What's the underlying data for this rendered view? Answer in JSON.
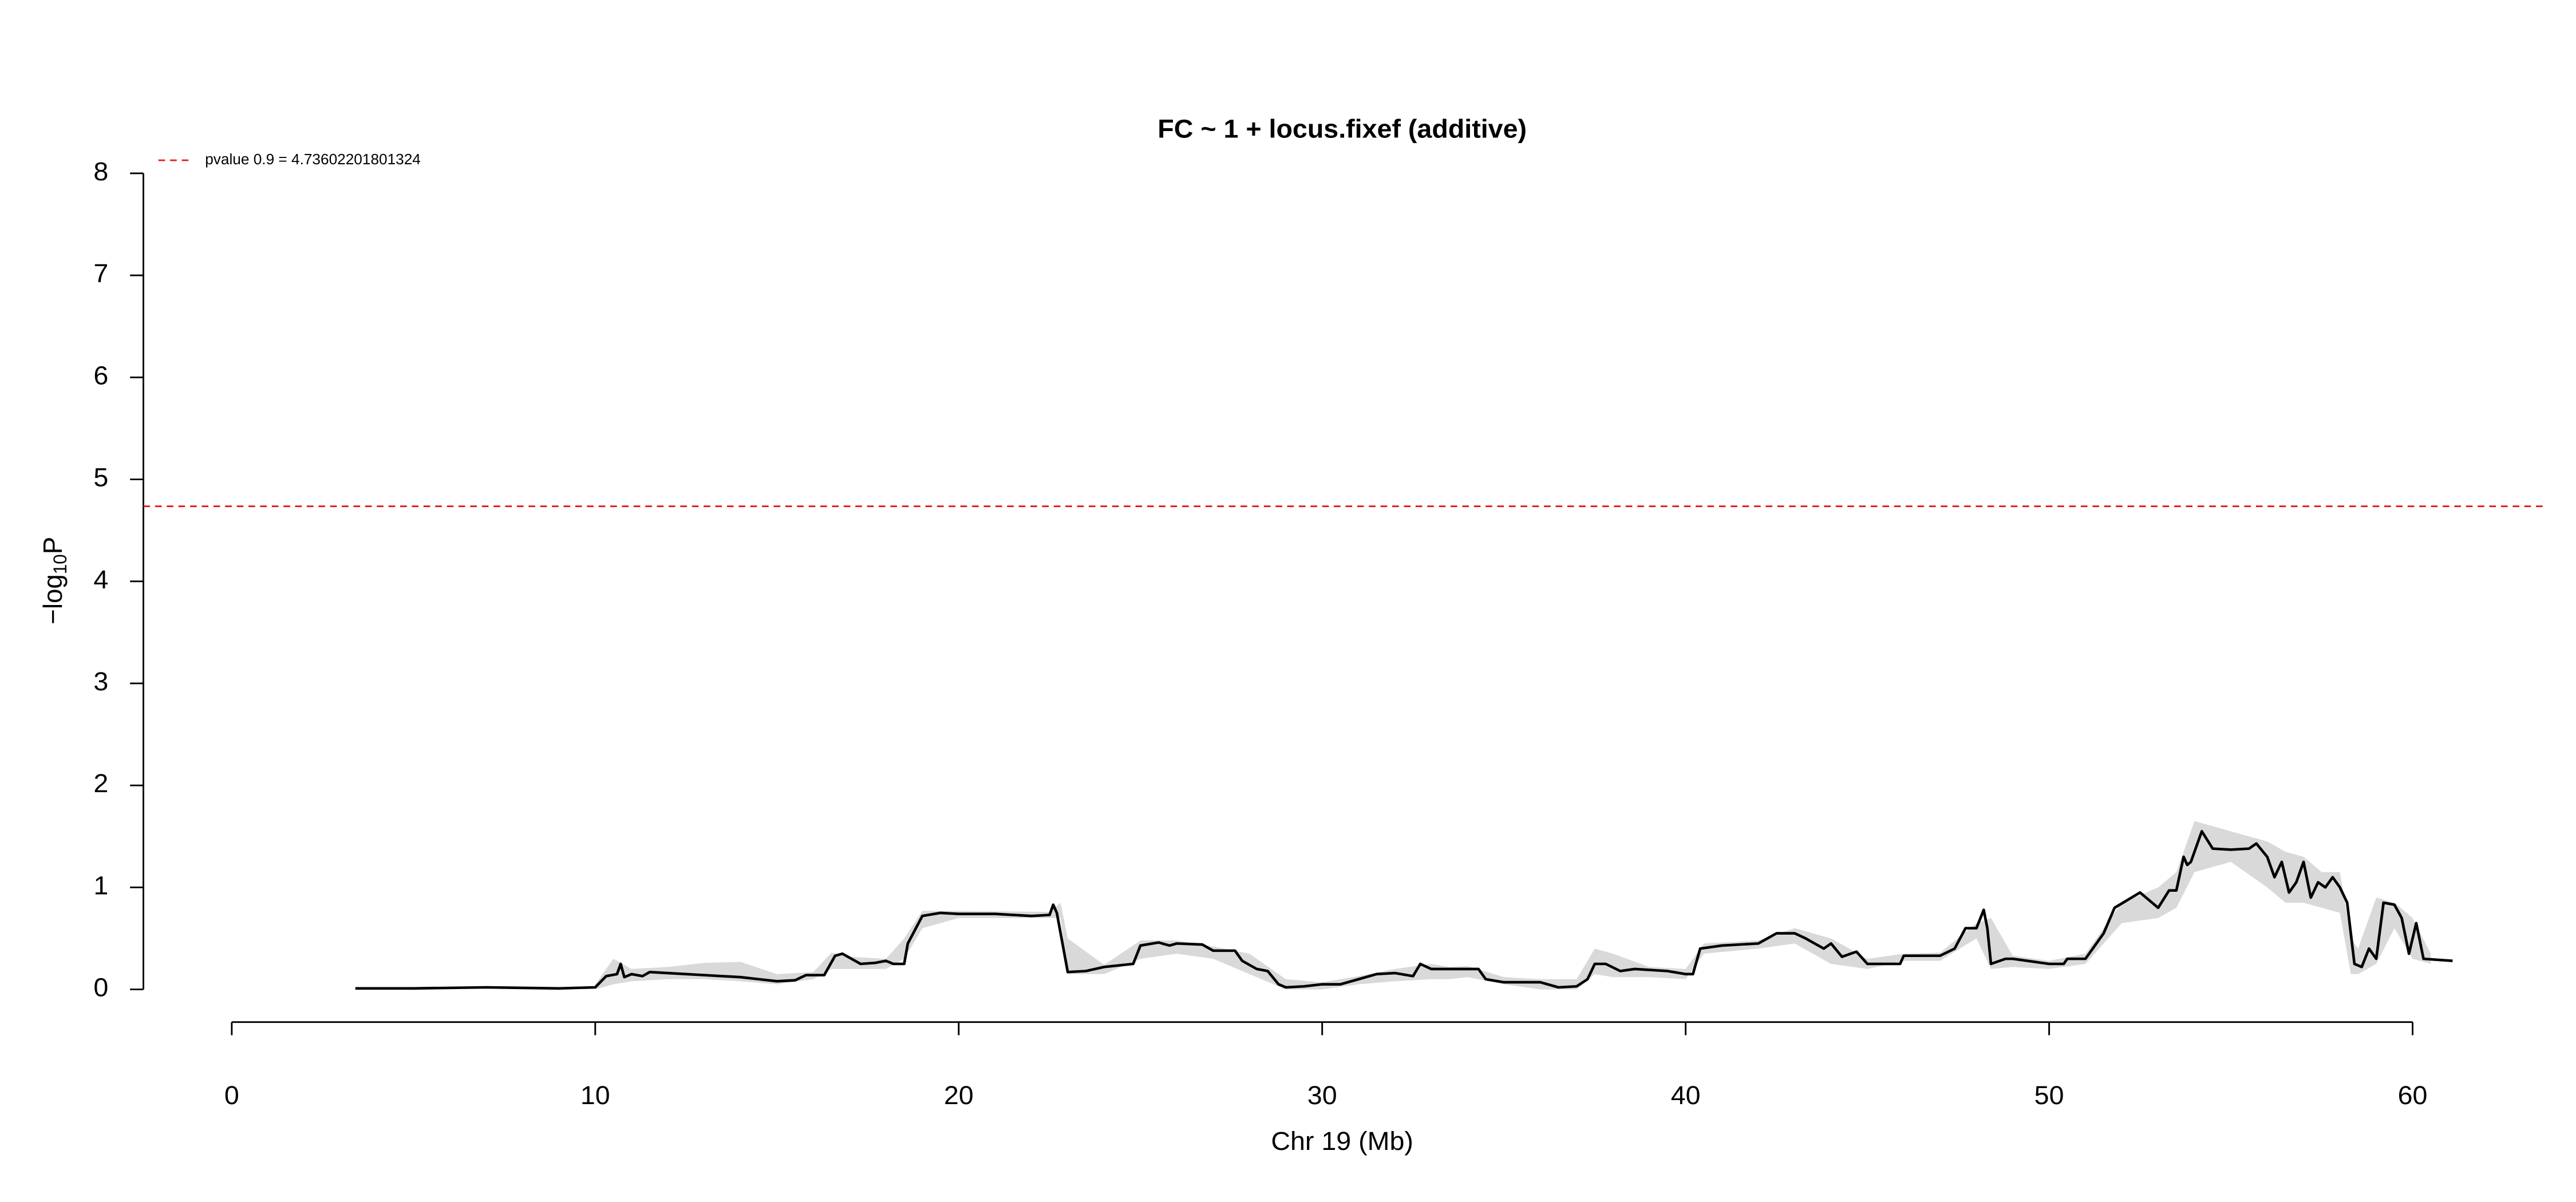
{
  "chart_data": {
    "type": "line",
    "title": "FC ~ 1 + locus.fixef (additive)",
    "xlabel": "Chr 19 (Mb)",
    "ylabel": {
      "text": "−log",
      "subscript": "10",
      "after": "P"
    },
    "xlim": [
      0,
      60
    ],
    "xticks": [
      0,
      10,
      20,
      30,
      40,
      50,
      60
    ],
    "ylim": [
      0,
      8
    ],
    "yticks": [
      0,
      1,
      2,
      3,
      4,
      5,
      6,
      7,
      8
    ],
    "threshold": {
      "value": 4.73602201801324,
      "label": "pvalue 0.9 = 4.73602201801324",
      "color": "#e41a1c"
    },
    "band": {
      "color": "#d9d9d9",
      "x": [
        10,
        10.5,
        11,
        12,
        13,
        14,
        15,
        16,
        16.5,
        17,
        18,
        18.5,
        19,
        20,
        22.5,
        22.8,
        23,
        24,
        25,
        26,
        27,
        28,
        29,
        30,
        31,
        32,
        33,
        33.5,
        34,
        35,
        36,
        37,
        37.5,
        38,
        39,
        40,
        40.5,
        42,
        43,
        44,
        45,
        46,
        47,
        48,
        48.4,
        49,
        50,
        51,
        52,
        53,
        53.5,
        54,
        55,
        56,
        56.5,
        57,
        57.5,
        58,
        58.3,
        58.5,
        59,
        59.5,
        60,
        60.5
      ],
      "upper": [
        0.05,
        0.3,
        0.2,
        0.22,
        0.26,
        0.27,
        0.15,
        0.17,
        0.36,
        0.32,
        0.3,
        0.5,
        0.77,
        0.77,
        0.76,
        0.85,
        0.5,
        0.24,
        0.48,
        0.48,
        0.42,
        0.35,
        0.1,
        0.07,
        0.13,
        0.2,
        0.25,
        0.22,
        0.23,
        0.12,
        0.1,
        0.1,
        0.4,
        0.35,
        0.22,
        0.2,
        0.45,
        0.48,
        0.6,
        0.5,
        0.3,
        0.35,
        0.36,
        0.65,
        0.7,
        0.33,
        0.28,
        0.35,
        0.85,
        1.0,
        1.15,
        1.65,
        1.55,
        1.45,
        1.35,
        1.3,
        1.15,
        1.15,
        0.5,
        0.4,
        0.9,
        0.85,
        0.7,
        0.35
      ],
      "lower": [
        0,
        0.05,
        0.08,
        0.1,
        0.1,
        0.08,
        0.05,
        0.1,
        0.2,
        0.2,
        0.2,
        0.3,
        0.6,
        0.7,
        0.7,
        0.7,
        0.15,
        0.15,
        0.3,
        0.35,
        0.3,
        0.15,
        0,
        0,
        0.05,
        0.08,
        0.1,
        0.1,
        0.12,
        0.05,
        0,
        0,
        0.15,
        0.12,
        0.12,
        0.1,
        0.35,
        0.4,
        0.45,
        0.25,
        0.2,
        0.28,
        0.28,
        0.5,
        0.2,
        0.22,
        0.2,
        0.25,
        0.65,
        0.7,
        0.8,
        1.15,
        1.25,
        1.0,
        0.85,
        0.85,
        0.8,
        0.75,
        0.15,
        0.15,
        0.25,
        0.6,
        0.3,
        0.25
      ]
    },
    "series": [
      {
        "color": "#000000",
        "x": [
          3.4,
          5,
          7,
          9,
          10,
          10.3,
          10.6,
          10.7,
          10.8,
          11,
          11.3,
          11.5,
          12,
          13,
          14,
          14.5,
          15,
          15.5,
          15.8,
          16.3,
          16.6,
          16.8,
          17.3,
          17.7,
          18,
          18.2,
          18.5,
          18.6,
          19,
          19.5,
          20,
          21,
          22,
          22.5,
          22.6,
          22.7,
          23,
          23.5,
          24,
          24.8,
          25,
          25.5,
          25.8,
          26,
          26.7,
          27,
          27.6,
          27.8,
          28.2,
          28.5,
          28.8,
          29,
          29.5,
          30,
          30.5,
          31,
          31.5,
          32,
          32.5,
          32.7,
          33,
          34,
          34.3,
          34.5,
          35,
          36,
          36.5,
          37,
          37.3,
          37.5,
          37.8,
          38.2,
          38.6,
          39.5,
          40,
          40.2,
          40.4,
          41,
          42,
          42.5,
          43,
          43.3,
          43.8,
          44,
          44.3,
          44.7,
          45,
          45.9,
          46,
          47,
          47.4,
          47.7,
          48,
          48.2,
          48.3,
          48.4,
          48.8,
          49,
          50,
          50.4,
          50.5,
          51,
          51.5,
          51.8,
          52.5,
          53,
          53.3,
          53.5,
          53.7,
          53.8,
          53.9,
          54.2,
          54.5,
          55,
          55.5,
          55.7,
          56,
          56.2,
          56.4,
          56.6,
          56.8,
          57,
          57.2,
          57.4,
          57.6,
          57.8,
          58,
          58.2,
          58.4,
          58.6,
          58.8,
          59,
          59.2,
          59.5,
          59.7,
          59.9,
          60.1,
          60.3,
          61.1
        ],
        "values": [
          0.01,
          0.01,
          0.02,
          0.01,
          0.02,
          0.13,
          0.15,
          0.25,
          0.12,
          0.15,
          0.13,
          0.17,
          0.16,
          0.14,
          0.12,
          0.1,
          0.08,
          0.09,
          0.14,
          0.14,
          0.33,
          0.35,
          0.25,
          0.26,
          0.28,
          0.25,
          0.25,
          0.45,
          0.72,
          0.75,
          0.74,
          0.74,
          0.72,
          0.73,
          0.83,
          0.75,
          0.17,
          0.18,
          0.22,
          0.25,
          0.43,
          0.46,
          0.43,
          0.45,
          0.44,
          0.38,
          0.38,
          0.28,
          0.2,
          0.18,
          0.05,
          0.02,
          0.03,
          0.05,
          0.05,
          0.1,
          0.15,
          0.16,
          0.13,
          0.25,
          0.2,
          0.2,
          0.2,
          0.1,
          0.07,
          0.07,
          0.02,
          0.03,
          0.1,
          0.25,
          0.25,
          0.18,
          0.2,
          0.18,
          0.15,
          0.15,
          0.4,
          0.43,
          0.45,
          0.55,
          0.55,
          0.5,
          0.4,
          0.45,
          0.32,
          0.37,
          0.25,
          0.25,
          0.33,
          0.33,
          0.4,
          0.6,
          0.6,
          0.78,
          0.6,
          0.25,
          0.3,
          0.3,
          0.25,
          0.25,
          0.3,
          0.3,
          0.55,
          0.8,
          0.95,
          0.8,
          0.97,
          0.97,
          1.3,
          1.22,
          1.25,
          1.55,
          1.38,
          1.37,
          1.38,
          1.43,
          1.3,
          1.1,
          1.25,
          0.95,
          1.05,
          1.25,
          0.9,
          1.05,
          1.0,
          1.1,
          1.0,
          0.85,
          0.25,
          0.22,
          0.4,
          0.3,
          0.85,
          0.83,
          0.7,
          0.35,
          0.65,
          0.3,
          0.28
        ]
      }
    ]
  }
}
